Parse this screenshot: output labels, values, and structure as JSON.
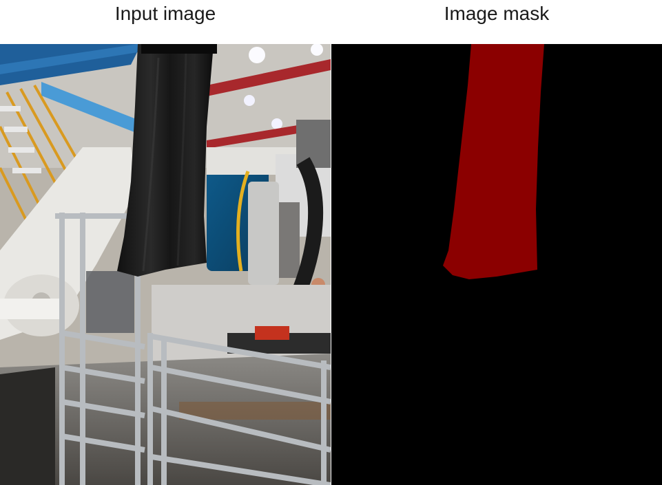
{
  "titles": {
    "input": "Input image",
    "mask": "Image mask"
  },
  "colors": {
    "mask_background": "#000000",
    "mask_region": "#8b0000"
  },
  "photo": {
    "subject": "black-cloth-drape",
    "scene": "industrial-robot-cell"
  }
}
